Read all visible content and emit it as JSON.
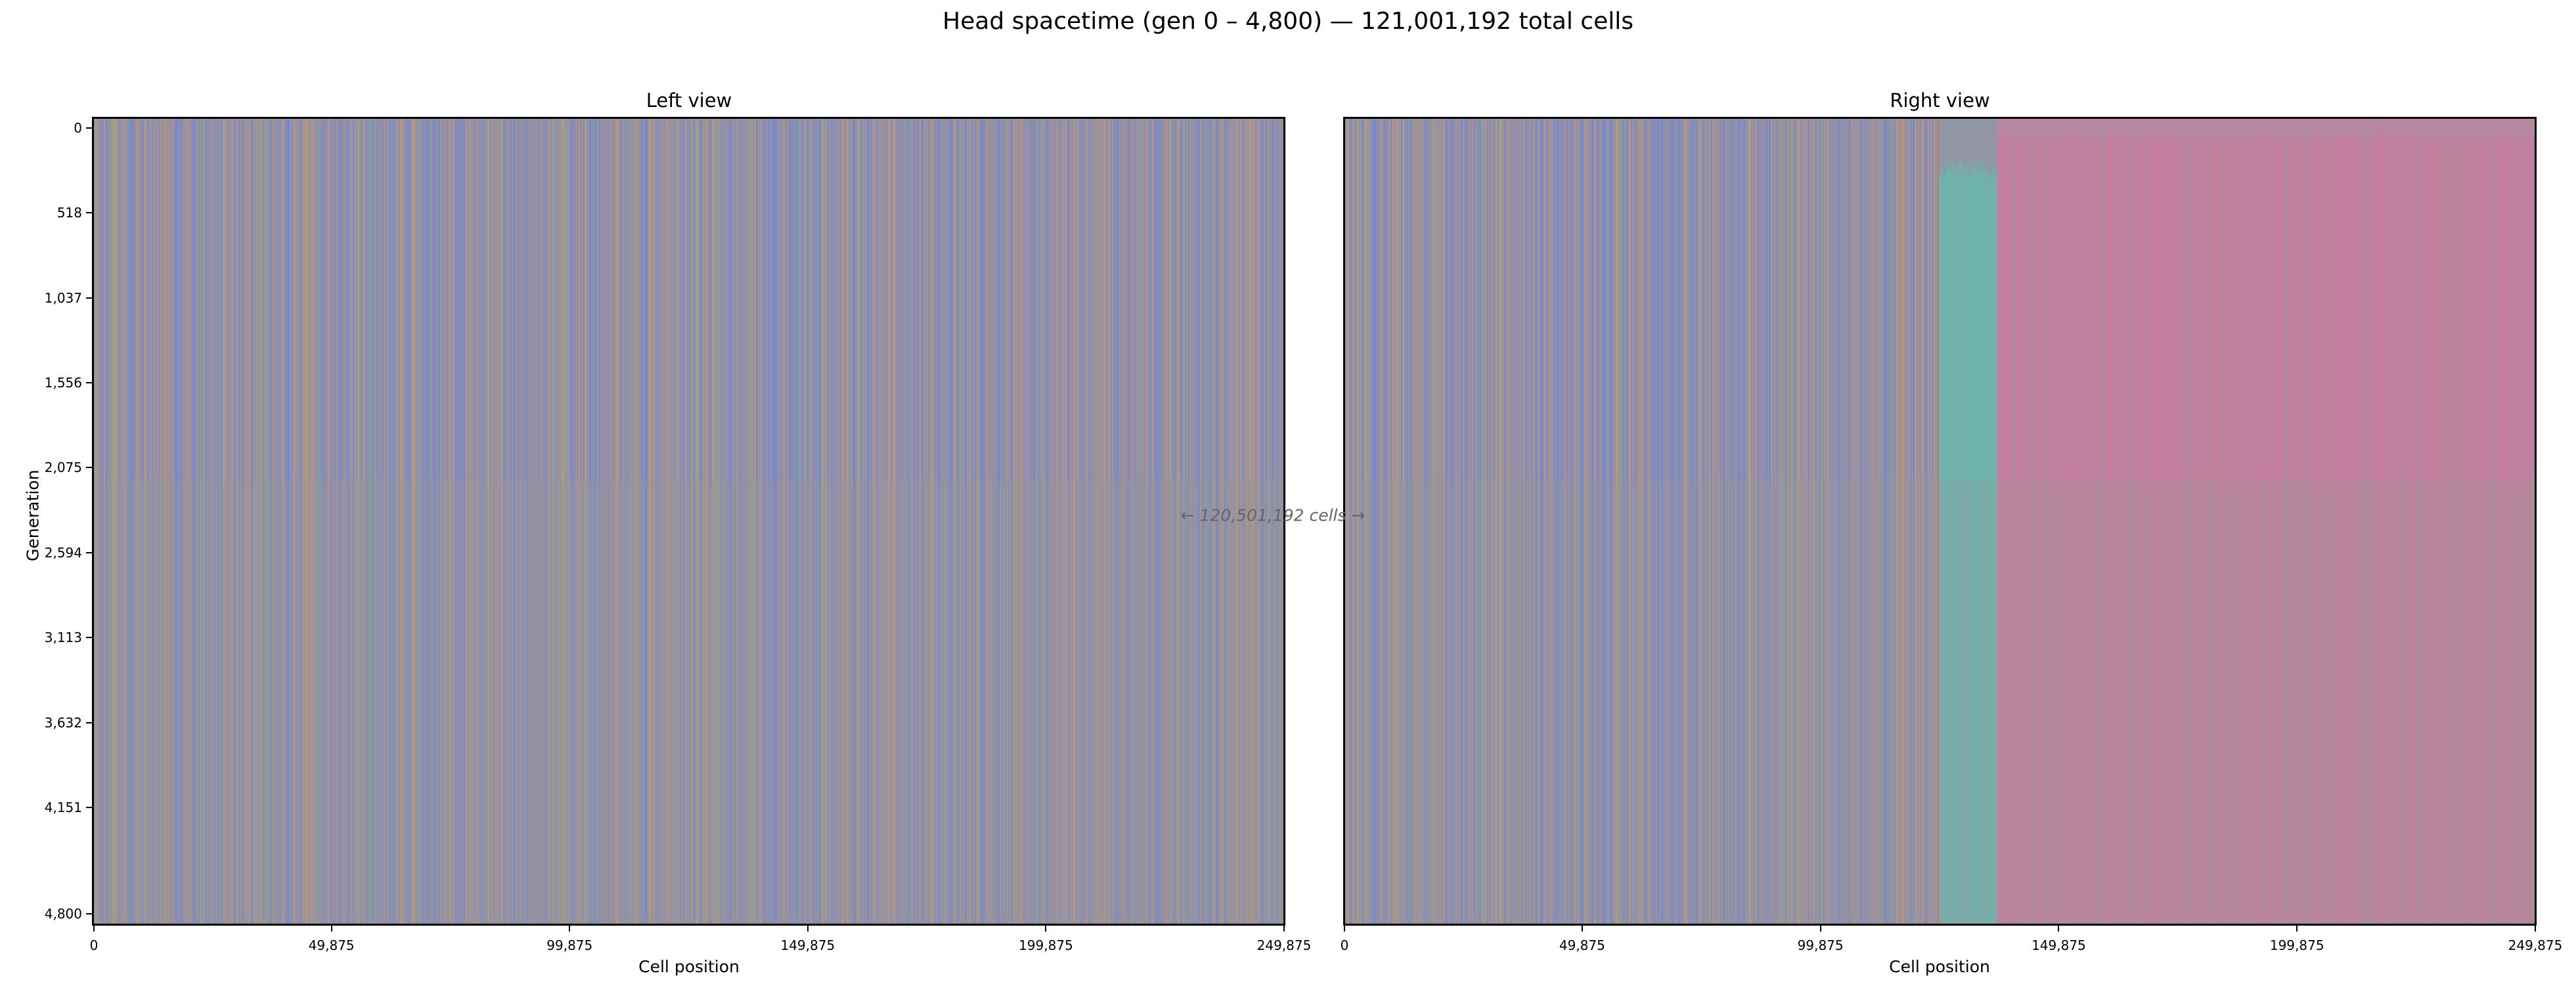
{
  "chart_data": {
    "type": "heatmap",
    "title": "Head spacetime (gen 0 – 4,800)  —  121,001,192 total cells",
    "ylabel": "Generation",
    "ylim": [
      4872,
      -68
    ],
    "yticks": [
      0,
      518,
      1037,
      1556,
      2075,
      2594,
      3113,
      3632,
      4151,
      4800
    ],
    "ytick_labels": [
      "0",
      "518",
      "1,037",
      "1,556",
      "2,075",
      "2,594",
      "3,113",
      "3,632",
      "4,151",
      "4,800"
    ],
    "annotation": "← 120,501,192 cells →",
    "panels": [
      {
        "title": "Left view",
        "xlabel": "Cell position",
        "xlim": [
          0,
          249875
        ],
        "xticks": [
          0,
          49875,
          99875,
          149875,
          199875,
          249875
        ],
        "xtick_labels": [
          "0",
          "49,875",
          "99,875",
          "149,875",
          "199,875",
          "249,875"
        ],
        "regions": [
          {
            "from": 0,
            "to": 249875,
            "palette": "mixed"
          }
        ]
      },
      {
        "title": "Right view",
        "xlabel": "Cell position",
        "xlim": [
          0,
          249875
        ],
        "xticks": [
          0,
          49875,
          99875,
          149875,
          199875,
          249875
        ],
        "xtick_labels": [
          "0",
          "49,875",
          "99,875",
          "149,875",
          "199,875",
          "249,875"
        ],
        "regions": [
          {
            "from": 0,
            "to": 124500,
            "palette": "mixed"
          },
          {
            "from": 124500,
            "to": 137000,
            "palette": "teal"
          },
          {
            "from": 137000,
            "to": 249875,
            "palette": "pink"
          }
        ]
      }
    ],
    "colors": {
      "blue": "#6f86d8",
      "orange": "#d39a5c",
      "gray": "#999999",
      "green": "#6cbf78",
      "teal": "#6ab6b0",
      "pink": "#d076a0",
      "mauve": "#b48aa2",
      "red": "#d06a6a"
    }
  }
}
